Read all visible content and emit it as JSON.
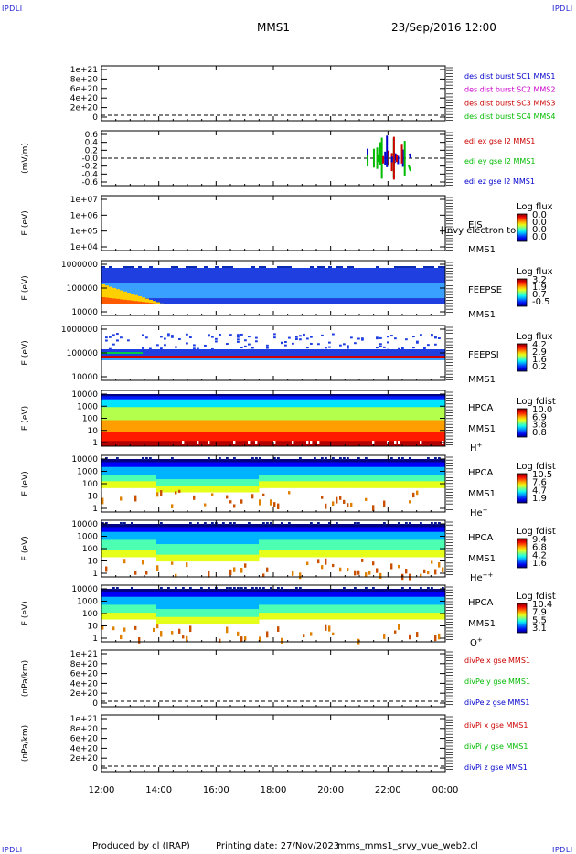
{
  "corner_label": "IPDLI",
  "header": {
    "spacecraft": "MMS1",
    "datetime": "23/Sep/2016 12:00"
  },
  "footer": {
    "produced": "Produced by cl (IRAP)",
    "printing": "Printing date: 27/Nov/2023",
    "script": "mms_mms1_srvy_vue_web2.cl"
  },
  "chart_data": {
    "type": "heatmap",
    "x_ticks": [
      "12:00",
      "14:00",
      "16:00",
      "18:00",
      "20:00",
      "22:00",
      "00:00"
    ],
    "xlim": [
      "12:00",
      "00:00"
    ],
    "panels": [
      {
        "id": "des",
        "type": "line",
        "ylabel": "",
        "yticks": [
          "1e+21",
          "8e+20",
          "6e+20",
          "4e+20",
          "2e+20",
          "0"
        ],
        "series": [
          {
            "name": "des dist burst SC1 MMS1",
            "color": "#0000cc"
          },
          {
            "name": "des dist burst SC2 MMS2",
            "color": "#cc00cc"
          },
          {
            "name": "des dist burst SC3 MMS3",
            "color": "#cc0000"
          },
          {
            "name": "des dist burst SC4 MMS4",
            "color": "#00bb00"
          }
        ]
      },
      {
        "id": "edi",
        "type": "line",
        "ylabel": "(mV/m)",
        "yticks": [
          "0.6",
          "0.4",
          "0.2",
          "-0.0",
          "-0.2",
          "-0.4",
          "-0.6"
        ],
        "series": [
          {
            "name": "edi ex gse l2 MMS1",
            "color": "#cc0000"
          },
          {
            "name": "edi ey gse l2 MMS1",
            "color": "#00bb00"
          },
          {
            "name": "edi ez gse l2 MMS1",
            "color": "#0000cc"
          }
        ]
      },
      {
        "id": "eis",
        "type": "heatmap",
        "ylabel": "E (eV)",
        "yticks": [
          "1e+07",
          "1e+06",
          "1e+05",
          "1e+04"
        ],
        "instrument": "EIS",
        "spacecraft": "MMS1",
        "overlay_text": "[Invy electron to",
        "colorbar_title": "Log flux",
        "colorbar_ticks": [
          "0.0",
          "0.0",
          "0.0",
          "0.0"
        ]
      },
      {
        "id": "feepse",
        "type": "heatmap",
        "ylabel": "E (eV)",
        "yticks": [
          "1000000",
          "100000",
          "10000"
        ],
        "instrument": "FEEPSE",
        "spacecraft": "MMS1",
        "colorbar_title": "Log flux",
        "colorbar_ticks": [
          "3.2",
          "1.9",
          "0.7",
          "-0.5"
        ]
      },
      {
        "id": "feepsi",
        "type": "heatmap",
        "ylabel": "E (eV)",
        "yticks": [
          "1000000",
          "100000",
          "10000"
        ],
        "instrument": "FEEPSI",
        "spacecraft": "MMS1",
        "colorbar_title": "Log flux",
        "colorbar_ticks": [
          "4.2",
          "2.9",
          "1.6",
          "0.2"
        ]
      },
      {
        "id": "hpca_h",
        "type": "heatmap",
        "ylabel": "E (eV)",
        "yticks": [
          "10000",
          "1000",
          "100",
          "10",
          "1"
        ],
        "instrument": "HPCA",
        "spacecraft": "MMS1",
        "species": "H",
        "charge": "+",
        "colorbar_title": "Log fdist",
        "colorbar_ticks": [
          "10.0",
          "6.9",
          "3.8",
          "0.8"
        ]
      },
      {
        "id": "hpca_he",
        "type": "heatmap",
        "ylabel": "E (eV)",
        "yticks": [
          "10000",
          "1000",
          "100",
          "10",
          "1"
        ],
        "instrument": "HPCA",
        "spacecraft": "MMS1",
        "species": "He",
        "charge": "+",
        "colorbar_title": "Log fdist",
        "colorbar_ticks": [
          "10.5",
          "7.6",
          "4.7",
          "1.9"
        ]
      },
      {
        "id": "hpca_he2",
        "type": "heatmap",
        "ylabel": "E (eV)",
        "yticks": [
          "10000",
          "1000",
          "100",
          "10",
          "1"
        ],
        "instrument": "HPCA",
        "spacecraft": "MMS1",
        "species": "He",
        "charge": "++",
        "colorbar_title": "Log fdist",
        "colorbar_ticks": [
          "9.4",
          "6.8",
          "4.2",
          "1.6"
        ]
      },
      {
        "id": "hpca_o",
        "type": "heatmap",
        "ylabel": "E (eV)",
        "yticks": [
          "10000",
          "1000",
          "100",
          "10",
          "1"
        ],
        "instrument": "HPCA",
        "spacecraft": "MMS1",
        "species": "O",
        "charge": "+",
        "colorbar_title": "Log fdist",
        "colorbar_ticks": [
          "10.4",
          "7.9",
          "5.5",
          "3.1"
        ]
      },
      {
        "id": "divpe",
        "type": "line",
        "ylabel": "(nPa/km)",
        "yticks": [
          "1e+21",
          "8e+20",
          "6e+20",
          "4e+20",
          "2e+20",
          "0"
        ],
        "series": [
          {
            "name": "divPe x gse MMS1",
            "color": "#cc0000"
          },
          {
            "name": "divPe y gse MMS1",
            "color": "#00bb00"
          },
          {
            "name": "divPe z gse MMS1",
            "color": "#0000cc"
          }
        ]
      },
      {
        "id": "divpi",
        "type": "line",
        "ylabel": "(nPa/km)",
        "yticks": [
          "1e+21",
          "8e+20",
          "6e+20",
          "4e+20",
          "2e+20",
          "0"
        ],
        "series": [
          {
            "name": "divPi x gse MMS1",
            "color": "#cc0000"
          },
          {
            "name": "divPi y gse MMS1",
            "color": "#00bb00"
          },
          {
            "name": "divPi z gse MMS1",
            "color": "#0000cc"
          }
        ]
      }
    ]
  }
}
